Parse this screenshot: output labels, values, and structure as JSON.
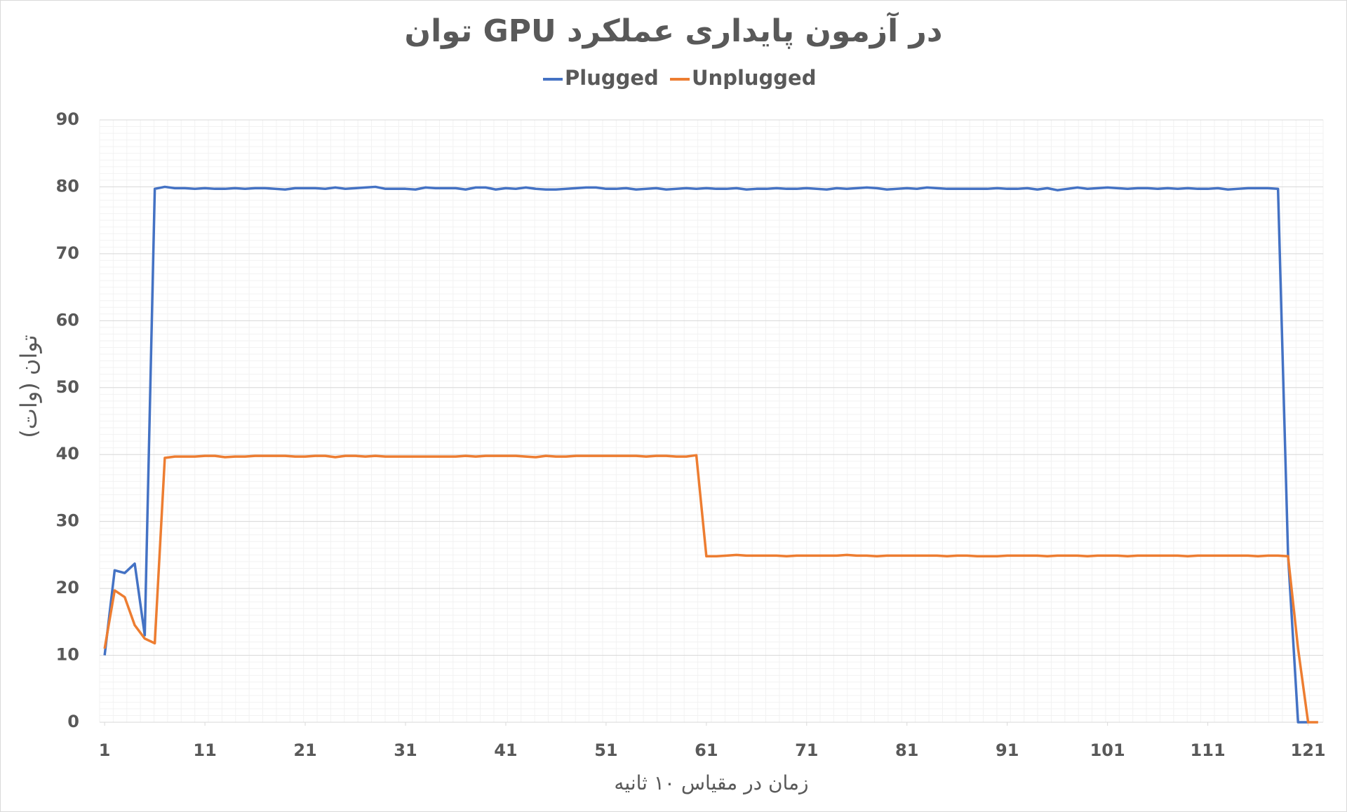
{
  "chart_data": {
    "type": "line",
    "title": "توان GPU در آزمون پایداری عملکرد",
    "x_label": "زمان در مقیاس ۱۰ ثانیه",
    "y_label": "توان (وات)",
    "x": [
      1,
      2,
      3,
      4,
      5,
      6,
      7,
      8,
      9,
      10,
      11,
      12,
      13,
      14,
      15,
      16,
      17,
      18,
      19,
      20,
      21,
      22,
      23,
      24,
      25,
      26,
      27,
      28,
      29,
      30,
      31,
      32,
      33,
      34,
      35,
      36,
      37,
      38,
      39,
      40,
      41,
      42,
      43,
      44,
      45,
      46,
      47,
      48,
      49,
      50,
      51,
      52,
      53,
      54,
      55,
      56,
      57,
      58,
      59,
      60,
      61,
      62,
      63,
      64,
      65,
      66,
      67,
      68,
      69,
      70,
      71,
      72,
      73,
      74,
      75,
      76,
      77,
      78,
      79,
      80,
      81,
      82,
      83,
      84,
      85,
      86,
      87,
      88,
      89,
      90,
      91,
      92,
      93,
      94,
      95,
      96,
      97,
      98,
      99,
      100,
      101,
      102,
      103,
      104,
      105,
      106,
      107,
      108,
      109,
      110,
      111,
      112,
      113,
      114,
      115,
      116,
      117,
      118,
      119,
      120,
      121,
      122
    ],
    "series": [
      {
        "name": "Plugged",
        "color": "#4472c4",
        "values": [
          10,
          22.7,
          22.3,
          23.7,
          13,
          79.7,
          80,
          79.8,
          79.8,
          79.7,
          79.8,
          79.7,
          79.7,
          79.8,
          79.7,
          79.8,
          79.8,
          79.7,
          79.6,
          79.8,
          79.8,
          79.8,
          79.7,
          79.9,
          79.7,
          79.8,
          79.9,
          80,
          79.7,
          79.7,
          79.7,
          79.6,
          79.9,
          79.8,
          79.8,
          79.8,
          79.6,
          79.9,
          79.9,
          79.6,
          79.8,
          79.7,
          79.9,
          79.7,
          79.6,
          79.6,
          79.7,
          79.8,
          79.9,
          79.9,
          79.7,
          79.7,
          79.8,
          79.6,
          79.7,
          79.8,
          79.6,
          79.7,
          79.8,
          79.7,
          79.8,
          79.7,
          79.7,
          79.8,
          79.6,
          79.7,
          79.7,
          79.8,
          79.7,
          79.7,
          79.8,
          79.7,
          79.6,
          79.8,
          79.7,
          79.8,
          79.9,
          79.8,
          79.6,
          79.7,
          79.8,
          79.7,
          79.9,
          79.8,
          79.7,
          79.7,
          79.7,
          79.7,
          79.7,
          79.8,
          79.7,
          79.7,
          79.8,
          79.6,
          79.8,
          79.5,
          79.7,
          79.9,
          79.7,
          79.8,
          79.9,
          79.8,
          79.7,
          79.8,
          79.8,
          79.7,
          79.8,
          79.7,
          79.8,
          79.7,
          79.7,
          79.8,
          79.6,
          79.7,
          79.8,
          79.8,
          79.8,
          79.7,
          25,
          0,
          0,
          null
        ]
      },
      {
        "name": "Unplugged",
        "color": "#ed7d31",
        "values": [
          11,
          19.7,
          18.7,
          14.5,
          12.5,
          11.8,
          39.5,
          39.7,
          39.7,
          39.7,
          39.8,
          39.8,
          39.6,
          39.7,
          39.7,
          39.8,
          39.8,
          39.8,
          39.8,
          39.7,
          39.7,
          39.8,
          39.8,
          39.6,
          39.8,
          39.8,
          39.7,
          39.8,
          39.7,
          39.7,
          39.7,
          39.7,
          39.7,
          39.7,
          39.7,
          39.7,
          39.8,
          39.7,
          39.8,
          39.8,
          39.8,
          39.8,
          39.7,
          39.6,
          39.8,
          39.7,
          39.7,
          39.8,
          39.8,
          39.8,
          39.8,
          39.8,
          39.8,
          39.8,
          39.7,
          39.8,
          39.8,
          39.7,
          39.7,
          39.9,
          24.8,
          24.8,
          24.9,
          25,
          24.9,
          24.9,
          24.9,
          24.9,
          24.8,
          24.9,
          24.9,
          24.9,
          24.9,
          24.9,
          25,
          24.9,
          24.9,
          24.8,
          24.9,
          24.9,
          24.9,
          24.9,
          24.9,
          24.9,
          24.8,
          24.9,
          24.9,
          24.8,
          24.8,
          24.8,
          24.9,
          24.9,
          24.9,
          24.9,
          24.8,
          24.9,
          24.9,
          24.9,
          24.8,
          24.9,
          24.9,
          24.9,
          24.8,
          24.9,
          24.9,
          24.9,
          24.9,
          24.9,
          24.8,
          24.9,
          24.9,
          24.9,
          24.9,
          24.9,
          24.9,
          24.8,
          24.9,
          24.9,
          24.8,
          11,
          0,
          0
        ]
      }
    ],
    "xlim": [
      0.5,
      122.5
    ],
    "xticks": [
      1,
      11,
      21,
      31,
      41,
      51,
      61,
      71,
      81,
      91,
      101,
      111,
      121
    ],
    "ylim": [
      0,
      90
    ],
    "yticks": [
      0,
      10,
      20,
      30,
      40,
      50,
      60,
      70,
      80,
      90
    ],
    "grid": true,
    "legend": "top"
  }
}
